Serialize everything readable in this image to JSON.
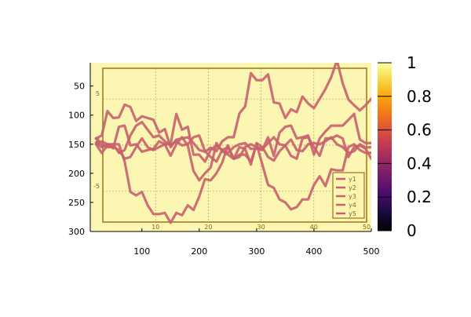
{
  "chart_data": {
    "type": "line",
    "title": "",
    "xlabel": "",
    "ylabel": "",
    "xlim": [
      10,
      500
    ],
    "ylim": [
      300,
      10
    ],
    "y_inverted": true,
    "grid": true,
    "legend_position": "bottom-right",
    "x_ticks": [
      "100",
      "200",
      "300",
      "400",
      "500"
    ],
    "y_ticks": [
      "50",
      "100",
      "150",
      "200",
      "250",
      "300"
    ],
    "inner_axes": {
      "x_ticks": [
        "10",
        "20",
        "30",
        "40",
        "50"
      ],
      "y_ticks": [
        "5",
        "0",
        "-5"
      ]
    },
    "colorbar": {
      "colormap": "inferno",
      "ticks": [
        "0",
        "0.2",
        "0.4",
        "0.6",
        "0.8",
        "1"
      ]
    },
    "line_color": "#c8606e",
    "background_color": "#fbf7b2",
    "inner_border_color": "#a0701e",
    "x": [
      20,
      30,
      40,
      50,
      60,
      70,
      80,
      90,
      100,
      110,
      120,
      130,
      140,
      150,
      160,
      170,
      180,
      190,
      200,
      210,
      220,
      230,
      240,
      250,
      260,
      270,
      280,
      290,
      300,
      310,
      320,
      330,
      340,
      350,
      360,
      370,
      380,
      390,
      400,
      410,
      420,
      430,
      440,
      450,
      460,
      470,
      480,
      490,
      500
    ],
    "series": [
      {
        "name": "y1",
        "values": [
          140,
          135,
          93,
          105,
          104,
          82,
          86,
          110,
          102,
          105,
          108,
          130,
          124,
          155,
          142,
          140,
          138,
          148,
          160,
          163,
          156,
          162,
          145,
          138,
          138,
          97,
          85,
          28,
          40,
          40,
          30,
          78,
          80,
          105,
          90,
          95,
          68,
          80,
          88,
          72,
          55,
          35,
          6,
          45,
          73,
          83,
          92,
          83,
          72
        ]
      },
      {
        "name": "y2",
        "values": [
          147,
          155,
          150,
          157,
          120,
          118,
          152,
          150,
          163,
          160,
          158,
          145,
          150,
          150,
          98,
          125,
          120,
          168,
          168,
          180,
          160,
          152,
          160,
          165,
          155,
          150,
          148,
          158,
          158,
          160,
          138,
          170,
          130,
          120,
          118,
          140,
          138,
          135,
          168,
          140,
          128,
          118,
          118,
          118,
          108,
          98,
          142,
          148,
          148
        ]
      },
      {
        "name": "y3",
        "values": [
          150,
          145,
          150,
          150,
          150,
          180,
          232,
          238,
          232,
          255,
          270,
          270,
          268,
          285,
          268,
          272,
          255,
          263,
          240,
          210,
          212,
          200,
          182,
          152,
          175,
          168,
          168,
          180,
          150,
          185,
          220,
          225,
          245,
          250,
          262,
          258,
          245,
          245,
          220,
          205,
          222,
          193,
          195,
          195,
          155,
          150,
          160,
          165,
          165
        ]
      },
      {
        "name": "y4",
        "values": [
          140,
          150,
          155,
          155,
          160,
          175,
          172,
          155,
          140,
          155,
          160,
          155,
          150,
          170,
          150,
          138,
          152,
          196,
          212,
          200,
          190,
          148,
          162,
          168,
          175,
          155,
          158,
          185,
          148,
          155,
          172,
          178,
          162,
          152,
          142,
          160,
          162,
          150,
          148,
          150,
          145,
          138,
          150,
          155,
          165,
          162,
          150,
          156,
          155
        ]
      },
      {
        "name": "y5",
        "values": [
          150,
          165,
          152,
          150,
          165,
          160,
          135,
          118,
          112,
          125,
          138,
          135,
          145,
          152,
          145,
          152,
          150,
          138,
          135,
          162,
          172,
          180,
          160,
          155,
          175,
          172,
          155,
          150,
          155,
          158,
          148,
          138,
          150,
          152,
          170,
          175,
          140,
          138,
          155,
          170,
          140,
          140,
          135,
          140,
          172,
          155,
          152,
          158,
          175
        ]
      }
    ]
  }
}
